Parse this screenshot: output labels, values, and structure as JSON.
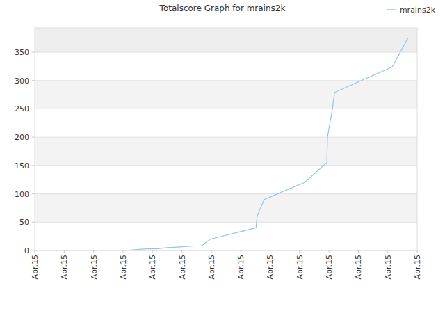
{
  "chart_data": {
    "type": "line",
    "title": "Totalscore Graph for mrains2k",
    "x": [
      0.87,
      3.07,
      3.31,
      3.78,
      4.14,
      4.49,
      4.85,
      5.08,
      5.44,
      5.67,
      5.96,
      7.52,
      7.56,
      7.63,
      7.8,
      9.17,
      9.93,
      9.95,
      10.12,
      10.19,
      12.15,
      12.69
    ],
    "series": [
      {
        "name": "mrains2k",
        "color": "#92c5eb",
        "values": [
          0,
          0,
          1,
          3,
          3,
          5,
          6,
          7,
          8,
          8,
          20,
          40,
          60,
          70,
          90,
          120,
          155,
          200,
          250,
          279,
          324,
          375
        ]
      }
    ],
    "xlim": [
      0,
      13
    ],
    "xticks": [
      {
        "value": 0,
        "label": "Apr.15"
      },
      {
        "value": 1,
        "label": "Apr.15"
      },
      {
        "value": 2,
        "label": "Apr.15"
      },
      {
        "value": 3,
        "label": "Apr.15"
      },
      {
        "value": 4,
        "label": "Apr.15"
      },
      {
        "value": 5,
        "label": "Apr.15"
      },
      {
        "value": 6,
        "label": "Apr.15"
      },
      {
        "value": 7,
        "label": "Apr.15"
      },
      {
        "value": 8,
        "label": "Apr.15"
      },
      {
        "value": 9,
        "label": "Apr.15"
      },
      {
        "value": 10,
        "label": "Apr.15"
      },
      {
        "value": 11,
        "label": "Apr.15"
      },
      {
        "value": 12,
        "label": "Apr.15"
      },
      {
        "value": 13,
        "label": "Apr.15"
      }
    ],
    "ylim": [
      0,
      393
    ],
    "yticks": [
      0,
      50,
      100,
      150,
      200,
      250,
      300,
      350
    ],
    "grid": true,
    "legend": "top-right"
  }
}
